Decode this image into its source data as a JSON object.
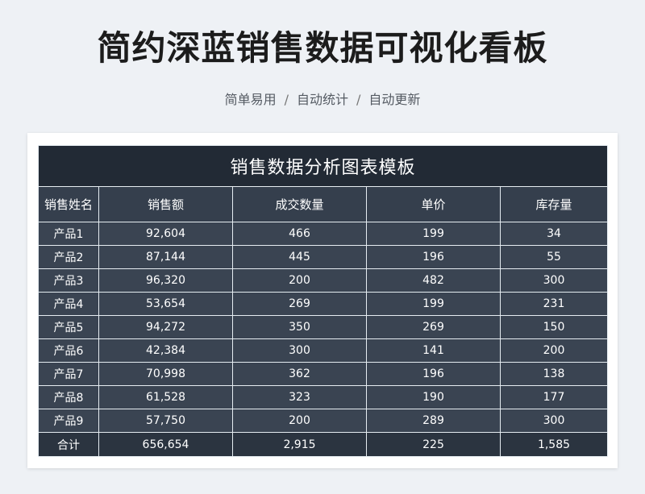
{
  "title": "简约深蓝销售数据可视化看板",
  "subtitle": {
    "part1": "简单易用",
    "part2": "自动统计",
    "part3": "自动更新",
    "separator": "/"
  },
  "table": {
    "title": "销售数据分析图表模板",
    "headers": [
      "销售姓名",
      "销售额",
      "成交数量",
      "单价",
      "库存量"
    ],
    "rows": [
      [
        "产品1",
        "92,604",
        "466",
        "199",
        "34"
      ],
      [
        "产品2",
        "87,144",
        "445",
        "196",
        "55"
      ],
      [
        "产品3",
        "96,320",
        "200",
        "482",
        "300"
      ],
      [
        "产品4",
        "53,654",
        "269",
        "199",
        "231"
      ],
      [
        "产品5",
        "94,272",
        "350",
        "269",
        "150"
      ],
      [
        "产品6",
        "42,384",
        "300",
        "141",
        "200"
      ],
      [
        "产品7",
        "70,998",
        "362",
        "196",
        "138"
      ],
      [
        "产品8",
        "61,528",
        "323",
        "190",
        "177"
      ],
      [
        "产品9",
        "57,750",
        "200",
        "289",
        "300"
      ]
    ],
    "total": [
      "合计",
      "656,654",
      "2,915",
      "225",
      "1,585"
    ]
  },
  "colors": {
    "title_bar": "#222a35",
    "header_row": "#353f4d",
    "body_row": "#3a4452",
    "grid_line": "#e6edf2"
  }
}
